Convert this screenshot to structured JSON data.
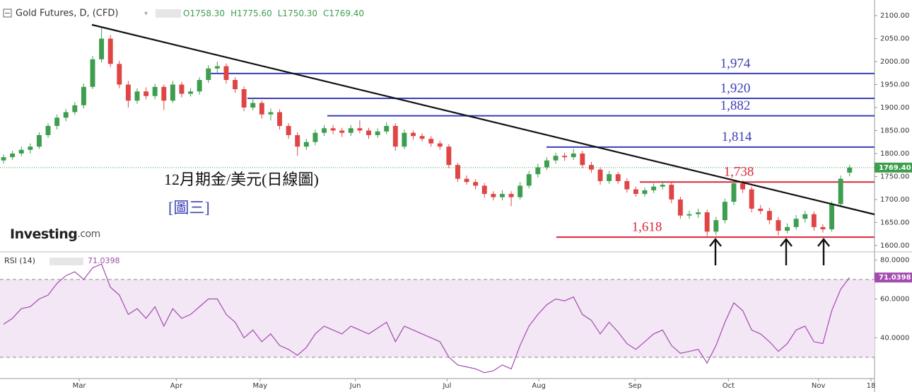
{
  "chart_data": [
    {
      "type": "candlestick",
      "title": "Gold Futures, D, (CFD)",
      "ohlc_header": [
        "O1758.30",
        "H1775.60",
        "L1750.30",
        "C1769.40"
      ],
      "up_color": "#3d9e4f",
      "down_color": "#e04545",
      "candles": [
        [
          1785,
          1798,
          1778,
          1792
        ],
        [
          1792,
          1806,
          1786,
          1800
        ],
        [
          1800,
          1815,
          1794,
          1808
        ],
        [
          1808,
          1822,
          1800,
          1815
        ],
        [
          1815,
          1846,
          1810,
          1840
        ],
        [
          1840,
          1866,
          1834,
          1860
        ],
        [
          1860,
          1885,
          1852,
          1878
        ],
        [
          1878,
          1897,
          1870,
          1890
        ],
        [
          1890,
          1912,
          1884,
          1905
        ],
        [
          1905,
          1952,
          1898,
          1945
        ],
        [
          1945,
          2012,
          1940,
          2005
        ],
        [
          2005,
          2075,
          1998,
          2050
        ],
        [
          2050,
          2058,
          1988,
          1995
        ],
        [
          1995,
          2002,
          1942,
          1950
        ],
        [
          1950,
          1958,
          1900,
          1915
        ],
        [
          1915,
          1942,
          1908,
          1935
        ],
        [
          1935,
          1944,
          1918,
          1925
        ],
        [
          1925,
          1952,
          1918,
          1945
        ],
        [
          1945,
          1950,
          1895,
          1915
        ],
        [
          1915,
          1958,
          1910,
          1950
        ],
        [
          1950,
          1956,
          1922,
          1930
        ],
        [
          1930,
          1942,
          1924,
          1935
        ],
        [
          1935,
          1966,
          1928,
          1960
        ],
        [
          1960,
          1992,
          1954,
          1985
        ],
        [
          1985,
          2000,
          1976,
          1990
        ],
        [
          1990,
          1996,
          1952,
          1960
        ],
        [
          1960,
          1966,
          1932,
          1940
        ],
        [
          1940,
          1946,
          1892,
          1900
        ],
        [
          1900,
          1922,
          1894,
          1910
        ],
        [
          1910,
          1915,
          1876,
          1885
        ],
        [
          1885,
          1898,
          1872,
          1890
        ],
        [
          1890,
          1896,
          1852,
          1860
        ],
        [
          1860,
          1866,
          1832,
          1840
        ],
        [
          1840,
          1846,
          1795,
          1815
        ],
        [
          1815,
          1832,
          1808,
          1825
        ],
        [
          1825,
          1852,
          1818,
          1845
        ],
        [
          1845,
          1862,
          1838,
          1855
        ],
        [
          1855,
          1862,
          1842,
          1850
        ],
        [
          1850,
          1856,
          1836,
          1845
        ],
        [
          1845,
          1862,
          1838,
          1855
        ],
        [
          1855,
          1872,
          1844,
          1850
        ],
        [
          1850,
          1856,
          1832,
          1840
        ],
        [
          1840,
          1855,
          1834,
          1848
        ],
        [
          1848,
          1868,
          1842,
          1860
        ],
        [
          1860,
          1866,
          1806,
          1815
        ],
        [
          1815,
          1852,
          1810,
          1845
        ],
        [
          1845,
          1850,
          1830,
          1838
        ],
        [
          1838,
          1844,
          1826,
          1832
        ],
        [
          1832,
          1838,
          1815,
          1822
        ],
        [
          1822,
          1828,
          1808,
          1815
        ],
        [
          1815,
          1820,
          1768,
          1775
        ],
        [
          1775,
          1780,
          1738,
          1745
        ],
        [
          1745,
          1752,
          1732,
          1738
        ],
        [
          1738,
          1744,
          1722,
          1730
        ],
        [
          1730,
          1736,
          1704,
          1712
        ],
        [
          1712,
          1718,
          1698,
          1705
        ],
        [
          1705,
          1720,
          1698,
          1712
        ],
        [
          1712,
          1718,
          1685,
          1705
        ],
        [
          1705,
          1738,
          1700,
          1730
        ],
        [
          1730,
          1762,
          1724,
          1755
        ],
        [
          1755,
          1778,
          1748,
          1770
        ],
        [
          1770,
          1792,
          1764,
          1785
        ],
        [
          1785,
          1802,
          1778,
          1795
        ],
        [
          1795,
          1802,
          1784,
          1792
        ],
        [
          1792,
          1810,
          1786,
          1800
        ],
        [
          1800,
          1806,
          1768,
          1775
        ],
        [
          1775,
          1782,
          1758,
          1765
        ],
        [
          1765,
          1770,
          1732,
          1740
        ],
        [
          1740,
          1762,
          1734,
          1755
        ],
        [
          1755,
          1760,
          1734,
          1740
        ],
        [
          1740,
          1746,
          1715,
          1722
        ],
        [
          1722,
          1728,
          1706,
          1712
        ],
        [
          1712,
          1726,
          1706,
          1720
        ],
        [
          1720,
          1735,
          1714,
          1728
        ],
        [
          1728,
          1740,
          1722,
          1732
        ],
        [
          1732,
          1738,
          1692,
          1700
        ],
        [
          1700,
          1706,
          1658,
          1665
        ],
        [
          1665,
          1676,
          1658,
          1668
        ],
        [
          1668,
          1680,
          1660,
          1672
        ],
        [
          1672,
          1678,
          1620,
          1630
        ],
        [
          1630,
          1662,
          1622,
          1655
        ],
        [
          1655,
          1702,
          1648,
          1695
        ],
        [
          1695,
          1742,
          1688,
          1735
        ],
        [
          1735,
          1742,
          1714,
          1722
        ],
        [
          1722,
          1728,
          1672,
          1680
        ],
        [
          1680,
          1688,
          1668,
          1675
        ],
        [
          1675,
          1682,
          1646,
          1655
        ],
        [
          1655,
          1662,
          1622,
          1632
        ],
        [
          1632,
          1648,
          1626,
          1640
        ],
        [
          1640,
          1666,
          1634,
          1658
        ],
        [
          1658,
          1675,
          1650,
          1668
        ],
        [
          1668,
          1674,
          1632,
          1640
        ],
        [
          1640,
          1646,
          1628,
          1635
        ],
        [
          1635,
          1696,
          1630,
          1690
        ],
        [
          1690,
          1752,
          1684,
          1745
        ],
        [
          1758.3,
          1775.6,
          1750.3,
          1769.4
        ]
      ],
      "last_price_label": "1769.40",
      "ylim": [
        1589,
        2134
      ],
      "yticks": [
        {
          "value": 1600,
          "label": "1600.00"
        },
        {
          "value": 1650,
          "label": "1650.00"
        },
        {
          "value": 1700,
          "label": "1700.00"
        },
        {
          "value": 1750,
          "label": "1750.00"
        },
        {
          "value": 1800,
          "label": "1800.00"
        },
        {
          "value": 1850,
          "label": "1850.00"
        },
        {
          "value": 1900,
          "label": "1900.00"
        },
        {
          "value": 1950,
          "label": "1950.00"
        },
        {
          "value": 2000,
          "label": "2000.00"
        },
        {
          "value": 2050,
          "label": "2050.00"
        },
        {
          "value": 2100,
          "label": "2100.00"
        }
      ],
      "xlim": [
        -0.4,
        97.8
      ],
      "xticks": [
        {
          "value": 8.5,
          "label": "Mar"
        },
        {
          "value": 19.4,
          "label": "Apr"
        },
        {
          "value": 28.8,
          "label": "May"
        },
        {
          "value": 39.5,
          "label": "Jun"
        },
        {
          "value": 49.8,
          "label": "Jul"
        },
        {
          "value": 60.1,
          "label": "Aug"
        },
        {
          "value": 70.9,
          "label": "Sep"
        },
        {
          "value": 81.4,
          "label": "Oct"
        },
        {
          "value": 91.5,
          "label": "Nov"
        },
        {
          "value": 97.4,
          "label": "18"
        }
      ],
      "levels": [
        {
          "value": 1974,
          "label": "1,974",
          "color": "#3a3fb5"
        },
        {
          "value": 1920,
          "label": "1,920",
          "color": "#3a3fb5"
        },
        {
          "value": 1882,
          "label": "1,882",
          "color": "#3a3fb5"
        },
        {
          "value": 1814,
          "label": "1,814",
          "color": "#3a3fb5"
        },
        {
          "value": 1738,
          "label": "1,738",
          "color": "#d9273a"
        },
        {
          "value": 1618,
          "label": "1,618",
          "color": "#d9273a"
        }
      ],
      "annotations": [
        "12月期金/美元(日線圖)",
        "[圖三]"
      ],
      "logo": [
        "Investing",
        ".com"
      ]
    },
    {
      "type": "line",
      "title": "RSI (14)",
      "color": "#a24cb0",
      "values": [
        47,
        50,
        55,
        56,
        60,
        62,
        68,
        72,
        74,
        70,
        76,
        78,
        66,
        62,
        52,
        55,
        50,
        56,
        46,
        55,
        50,
        52,
        56,
        60,
        60,
        52,
        48,
        40,
        44,
        38,
        42,
        36,
        34,
        31,
        35,
        42,
        46,
        44,
        42,
        46,
        44,
        42,
        45,
        48,
        38,
        46,
        44,
        42,
        40,
        38,
        30,
        26,
        25,
        24,
        22,
        23,
        26,
        24,
        36,
        46,
        52,
        57,
        60,
        59,
        61,
        52,
        49,
        42,
        48,
        43,
        37,
        34,
        38,
        42,
        44,
        36,
        32,
        33,
        34,
        27,
        36,
        48,
        58,
        54,
        44,
        42,
        38,
        33,
        37,
        44,
        46,
        38,
        37,
        54,
        65,
        71.0398
      ],
      "value_label": "71.0398",
      "band": [
        30,
        70
      ],
      "ylim": [
        19,
        83.5
      ],
      "yticks": [
        {
          "value": 40,
          "label": "40.0000"
        },
        {
          "value": 60,
          "label": "60.0000"
        },
        {
          "value": 80,
          "label": "80.0000"
        }
      ]
    }
  ]
}
